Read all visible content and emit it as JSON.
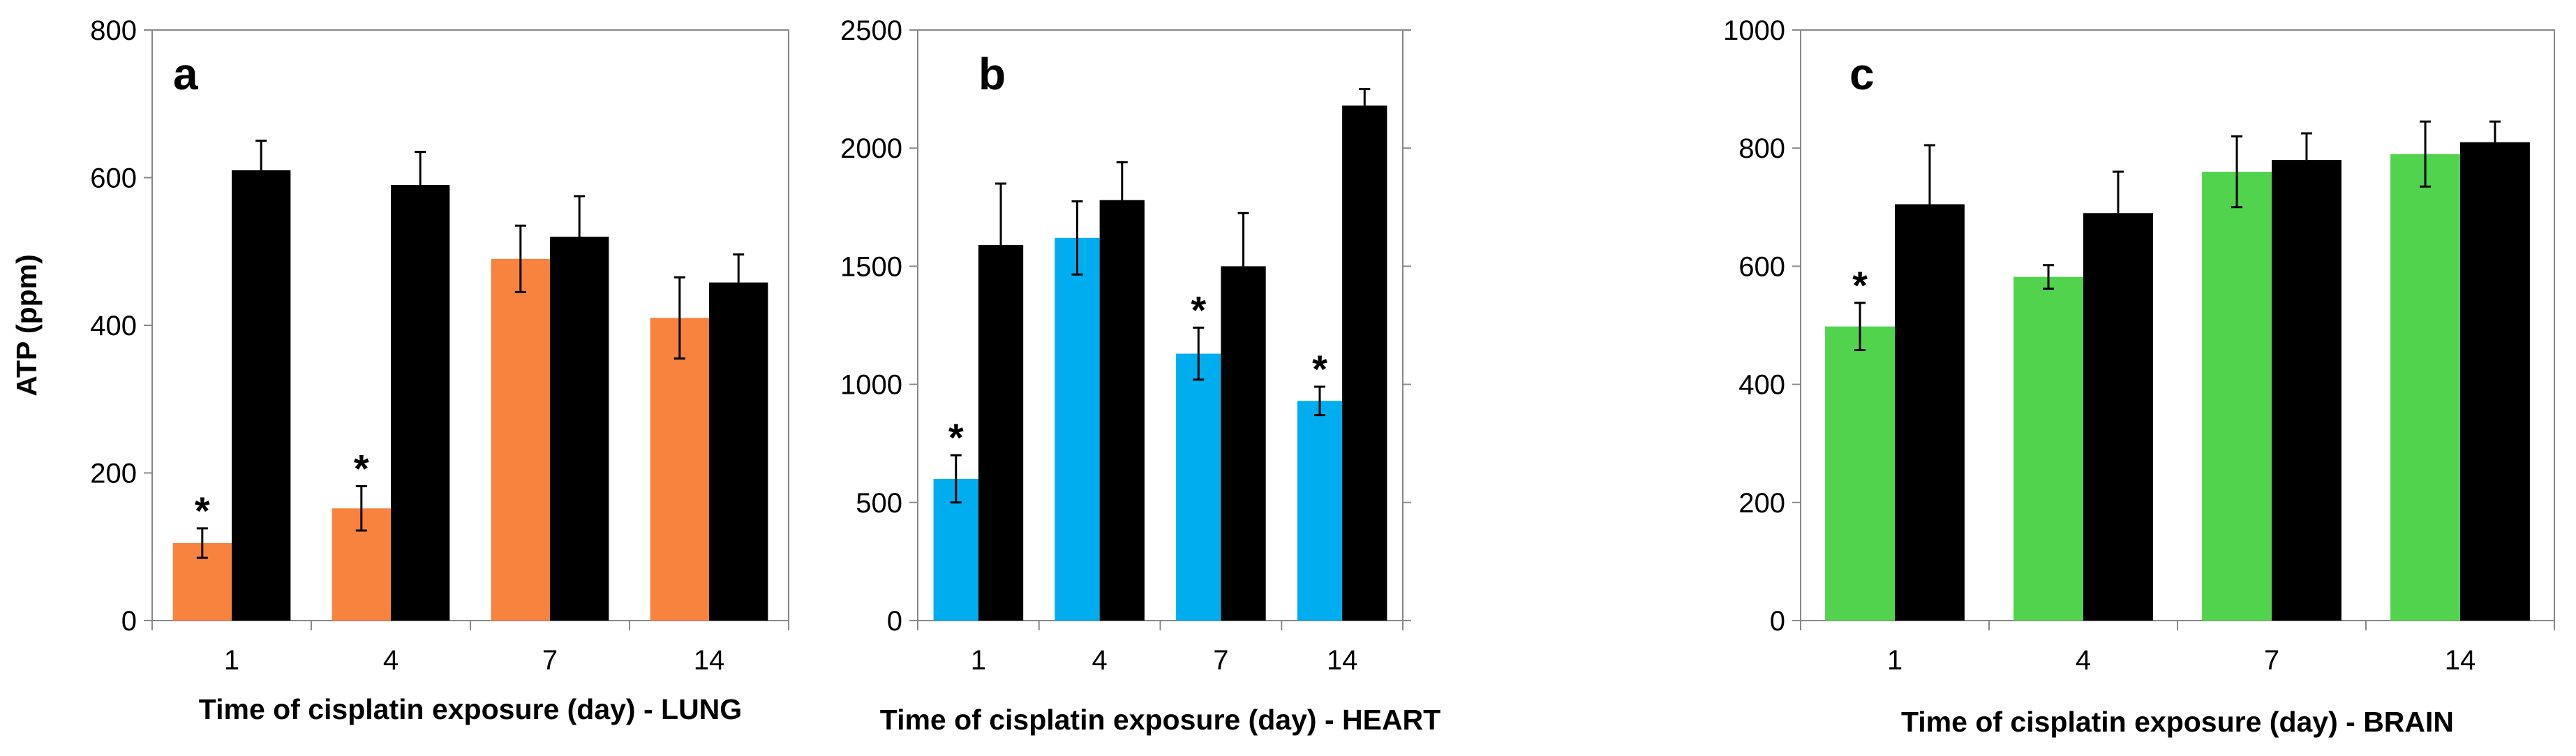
{
  "chart_data": [
    {
      "type": "bar",
      "panel_label": "a",
      "ylabel": "ATP (ppm)",
      "xlabel": "Time of cisplatin exposure (day) - LUNG",
      "categories": [
        "1",
        "4",
        "7",
        "14"
      ],
      "ylim": [
        0,
        800
      ],
      "yticks": [
        "0",
        "200",
        "400",
        "600",
        "800"
      ],
      "series": [
        {
          "color": "#f7833e",
          "values": [
            105,
            152,
            490,
            410
          ],
          "errors": [
            20,
            30,
            45,
            55
          ]
        },
        {
          "color": "#000000",
          "values": [
            610,
            590,
            520,
            458
          ],
          "errors": [
            40,
            45,
            55,
            38
          ]
        }
      ],
      "annotations": [
        {
          "category": "1",
          "series": 0,
          "text": "*"
        },
        {
          "category": "4",
          "series": 0,
          "text": "*"
        }
      ]
    },
    {
      "type": "bar",
      "panel_label": "b",
      "ylabel": "",
      "xlabel": "Time of cisplatin exposure (day) - HEART",
      "categories": [
        "1",
        "4",
        "7",
        "14"
      ],
      "ylim": [
        0,
        2500
      ],
      "yticks": [
        "0",
        "500",
        "1000",
        "1500",
        "2000",
        "2500"
      ],
      "series": [
        {
          "color": "#00adee",
          "values": [
            600,
            1620,
            1130,
            930
          ],
          "errors": [
            100,
            155,
            110,
            60
          ]
        },
        {
          "color": "#000000",
          "values": [
            1590,
            1780,
            1500,
            2180
          ],
          "errors": [
            260,
            160,
            225,
            70
          ]
        }
      ],
      "annotations": [
        {
          "category": "1",
          "series": 0,
          "text": "*"
        },
        {
          "category": "7",
          "series": 0,
          "text": "*"
        },
        {
          "category": "14",
          "series": 0,
          "text": "*"
        }
      ]
    },
    {
      "type": "bar",
      "panel_label": "c",
      "ylabel": "",
      "xlabel": "Time of cisplatin exposure (day) - BRAIN",
      "categories": [
        "1",
        "4",
        "7",
        "14"
      ],
      "ylim": [
        0,
        1000
      ],
      "yticks": [
        "0",
        "200",
        "400",
        "600",
        "800",
        "1000"
      ],
      "series": [
        {
          "color": "#52d34e",
          "values": [
            498,
            582,
            760,
            790
          ],
          "errors": [
            40,
            20,
            60,
            55
          ]
        },
        {
          "color": "#000000",
          "values": [
            705,
            690,
            780,
            810
          ],
          "errors": [
            100,
            70,
            45,
            35
          ]
        }
      ],
      "annotations": [
        {
          "category": "1",
          "series": 0,
          "text": "*"
        }
      ]
    }
  ]
}
